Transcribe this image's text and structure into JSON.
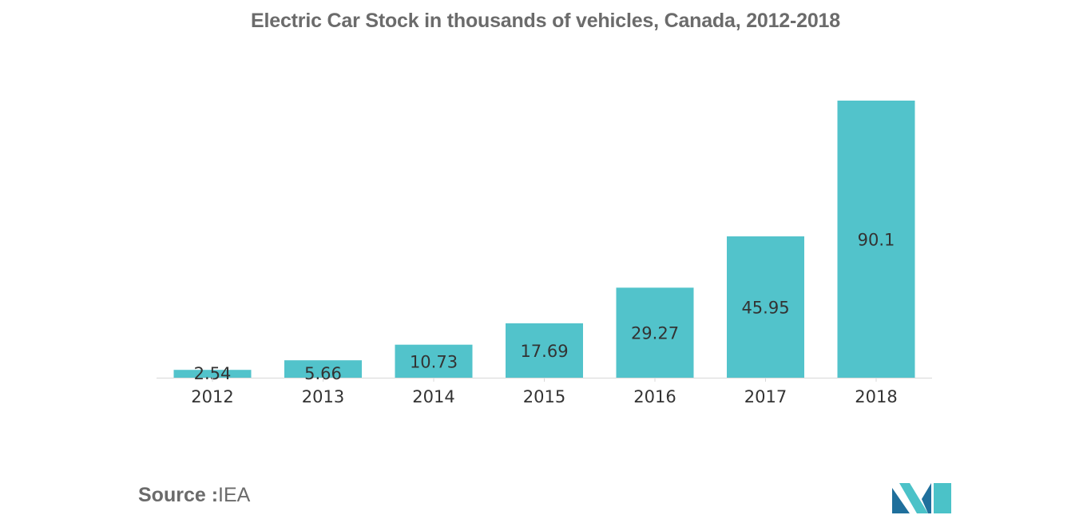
{
  "chart_data": {
    "type": "bar",
    "title": "Electric Car Stock in thousands of vehicles, Canada, 2012-2018",
    "categories": [
      "2012",
      "2013",
      "2014",
      "2015",
      "2016",
      "2017",
      "2018"
    ],
    "values": [
      2.54,
      5.66,
      10.73,
      17.69,
      29.27,
      45.95,
      90.1
    ],
    "value_labels": [
      "2.54",
      "5.66",
      "10.73",
      "17.69",
      "29.27",
      "45.95",
      "90.1"
    ],
    "xlabel": "",
    "ylabel": "",
    "ylim": [
      0,
      90.1
    ],
    "grid": false,
    "legend": "none",
    "bar_color": "#52c3cb"
  },
  "source": {
    "label": "Source :",
    "value": "IEA"
  },
  "colors": {
    "title": "#6b6b6b",
    "axis": "#d8d8d8",
    "label": "#333333",
    "logo_dark": "#1f6f9c",
    "logo_light": "#4bc2c8"
  }
}
